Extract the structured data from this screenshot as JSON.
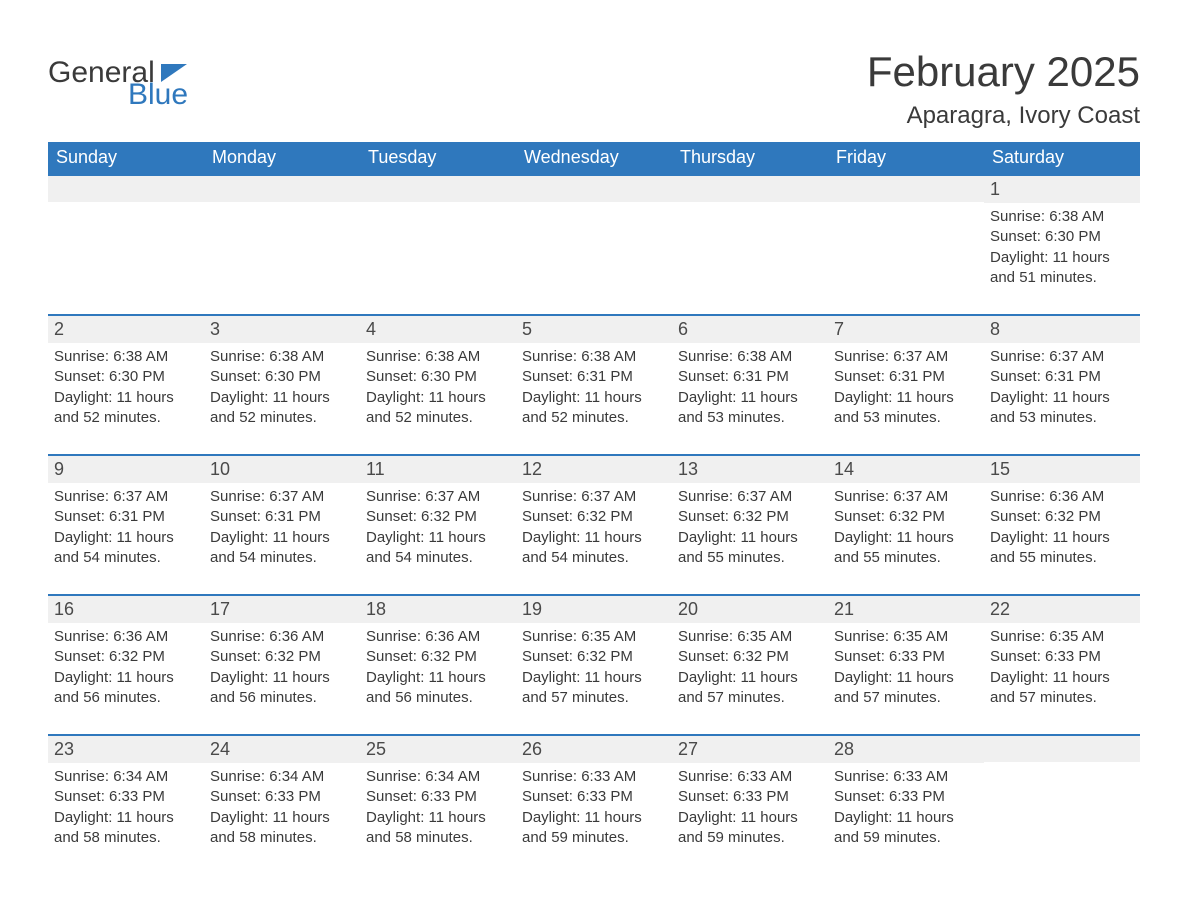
{
  "colors": {
    "brand_blue": "#2f78bd",
    "text_dark": "#3a3a3a",
    "row_bg": "#f0f0f0",
    "white": "#ffffff"
  },
  "logo": {
    "word1": "General",
    "word2": "Blue"
  },
  "title": "February 2025",
  "subtitle": "Aparagra, Ivory Coast",
  "weekdays": [
    "Sunday",
    "Monday",
    "Tuesday",
    "Wednesday",
    "Thursday",
    "Friday",
    "Saturday"
  ],
  "weeks": [
    [
      {
        "day": "",
        "sunrise": "",
        "sunset": "",
        "daylight": ""
      },
      {
        "day": "",
        "sunrise": "",
        "sunset": "",
        "daylight": ""
      },
      {
        "day": "",
        "sunrise": "",
        "sunset": "",
        "daylight": ""
      },
      {
        "day": "",
        "sunrise": "",
        "sunset": "",
        "daylight": ""
      },
      {
        "day": "",
        "sunrise": "",
        "sunset": "",
        "daylight": ""
      },
      {
        "day": "",
        "sunrise": "",
        "sunset": "",
        "daylight": ""
      },
      {
        "day": "1",
        "sunrise": "Sunrise: 6:38 AM",
        "sunset": "Sunset: 6:30 PM",
        "daylight": "Daylight: 11 hours and 51 minutes."
      }
    ],
    [
      {
        "day": "2",
        "sunrise": "Sunrise: 6:38 AM",
        "sunset": "Sunset: 6:30 PM",
        "daylight": "Daylight: 11 hours and 52 minutes."
      },
      {
        "day": "3",
        "sunrise": "Sunrise: 6:38 AM",
        "sunset": "Sunset: 6:30 PM",
        "daylight": "Daylight: 11 hours and 52 minutes."
      },
      {
        "day": "4",
        "sunrise": "Sunrise: 6:38 AM",
        "sunset": "Sunset: 6:30 PM",
        "daylight": "Daylight: 11 hours and 52 minutes."
      },
      {
        "day": "5",
        "sunrise": "Sunrise: 6:38 AM",
        "sunset": "Sunset: 6:31 PM",
        "daylight": "Daylight: 11 hours and 52 minutes."
      },
      {
        "day": "6",
        "sunrise": "Sunrise: 6:38 AM",
        "sunset": "Sunset: 6:31 PM",
        "daylight": "Daylight: 11 hours and 53 minutes."
      },
      {
        "day": "7",
        "sunrise": "Sunrise: 6:37 AM",
        "sunset": "Sunset: 6:31 PM",
        "daylight": "Daylight: 11 hours and 53 minutes."
      },
      {
        "day": "8",
        "sunrise": "Sunrise: 6:37 AM",
        "sunset": "Sunset: 6:31 PM",
        "daylight": "Daylight: 11 hours and 53 minutes."
      }
    ],
    [
      {
        "day": "9",
        "sunrise": "Sunrise: 6:37 AM",
        "sunset": "Sunset: 6:31 PM",
        "daylight": "Daylight: 11 hours and 54 minutes."
      },
      {
        "day": "10",
        "sunrise": "Sunrise: 6:37 AM",
        "sunset": "Sunset: 6:31 PM",
        "daylight": "Daylight: 11 hours and 54 minutes."
      },
      {
        "day": "11",
        "sunrise": "Sunrise: 6:37 AM",
        "sunset": "Sunset: 6:32 PM",
        "daylight": "Daylight: 11 hours and 54 minutes."
      },
      {
        "day": "12",
        "sunrise": "Sunrise: 6:37 AM",
        "sunset": "Sunset: 6:32 PM",
        "daylight": "Daylight: 11 hours and 54 minutes."
      },
      {
        "day": "13",
        "sunrise": "Sunrise: 6:37 AM",
        "sunset": "Sunset: 6:32 PM",
        "daylight": "Daylight: 11 hours and 55 minutes."
      },
      {
        "day": "14",
        "sunrise": "Sunrise: 6:37 AM",
        "sunset": "Sunset: 6:32 PM",
        "daylight": "Daylight: 11 hours and 55 minutes."
      },
      {
        "day": "15",
        "sunrise": "Sunrise: 6:36 AM",
        "sunset": "Sunset: 6:32 PM",
        "daylight": "Daylight: 11 hours and 55 minutes."
      }
    ],
    [
      {
        "day": "16",
        "sunrise": "Sunrise: 6:36 AM",
        "sunset": "Sunset: 6:32 PM",
        "daylight": "Daylight: 11 hours and 56 minutes."
      },
      {
        "day": "17",
        "sunrise": "Sunrise: 6:36 AM",
        "sunset": "Sunset: 6:32 PM",
        "daylight": "Daylight: 11 hours and 56 minutes."
      },
      {
        "day": "18",
        "sunrise": "Sunrise: 6:36 AM",
        "sunset": "Sunset: 6:32 PM",
        "daylight": "Daylight: 11 hours and 56 minutes."
      },
      {
        "day": "19",
        "sunrise": "Sunrise: 6:35 AM",
        "sunset": "Sunset: 6:32 PM",
        "daylight": "Daylight: 11 hours and 57 minutes."
      },
      {
        "day": "20",
        "sunrise": "Sunrise: 6:35 AM",
        "sunset": "Sunset: 6:32 PM",
        "daylight": "Daylight: 11 hours and 57 minutes."
      },
      {
        "day": "21",
        "sunrise": "Sunrise: 6:35 AM",
        "sunset": "Sunset: 6:33 PM",
        "daylight": "Daylight: 11 hours and 57 minutes."
      },
      {
        "day": "22",
        "sunrise": "Sunrise: 6:35 AM",
        "sunset": "Sunset: 6:33 PM",
        "daylight": "Daylight: 11 hours and 57 minutes."
      }
    ],
    [
      {
        "day": "23",
        "sunrise": "Sunrise: 6:34 AM",
        "sunset": "Sunset: 6:33 PM",
        "daylight": "Daylight: 11 hours and 58 minutes."
      },
      {
        "day": "24",
        "sunrise": "Sunrise: 6:34 AM",
        "sunset": "Sunset: 6:33 PM",
        "daylight": "Daylight: 11 hours and 58 minutes."
      },
      {
        "day": "25",
        "sunrise": "Sunrise: 6:34 AM",
        "sunset": "Sunset: 6:33 PM",
        "daylight": "Daylight: 11 hours and 58 minutes."
      },
      {
        "day": "26",
        "sunrise": "Sunrise: 6:33 AM",
        "sunset": "Sunset: 6:33 PM",
        "daylight": "Daylight: 11 hours and 59 minutes."
      },
      {
        "day": "27",
        "sunrise": "Sunrise: 6:33 AM",
        "sunset": "Sunset: 6:33 PM",
        "daylight": "Daylight: 11 hours and 59 minutes."
      },
      {
        "day": "28",
        "sunrise": "Sunrise: 6:33 AM",
        "sunset": "Sunset: 6:33 PM",
        "daylight": "Daylight: 11 hours and 59 minutes."
      },
      {
        "day": "",
        "sunrise": "",
        "sunset": "",
        "daylight": ""
      }
    ]
  ]
}
